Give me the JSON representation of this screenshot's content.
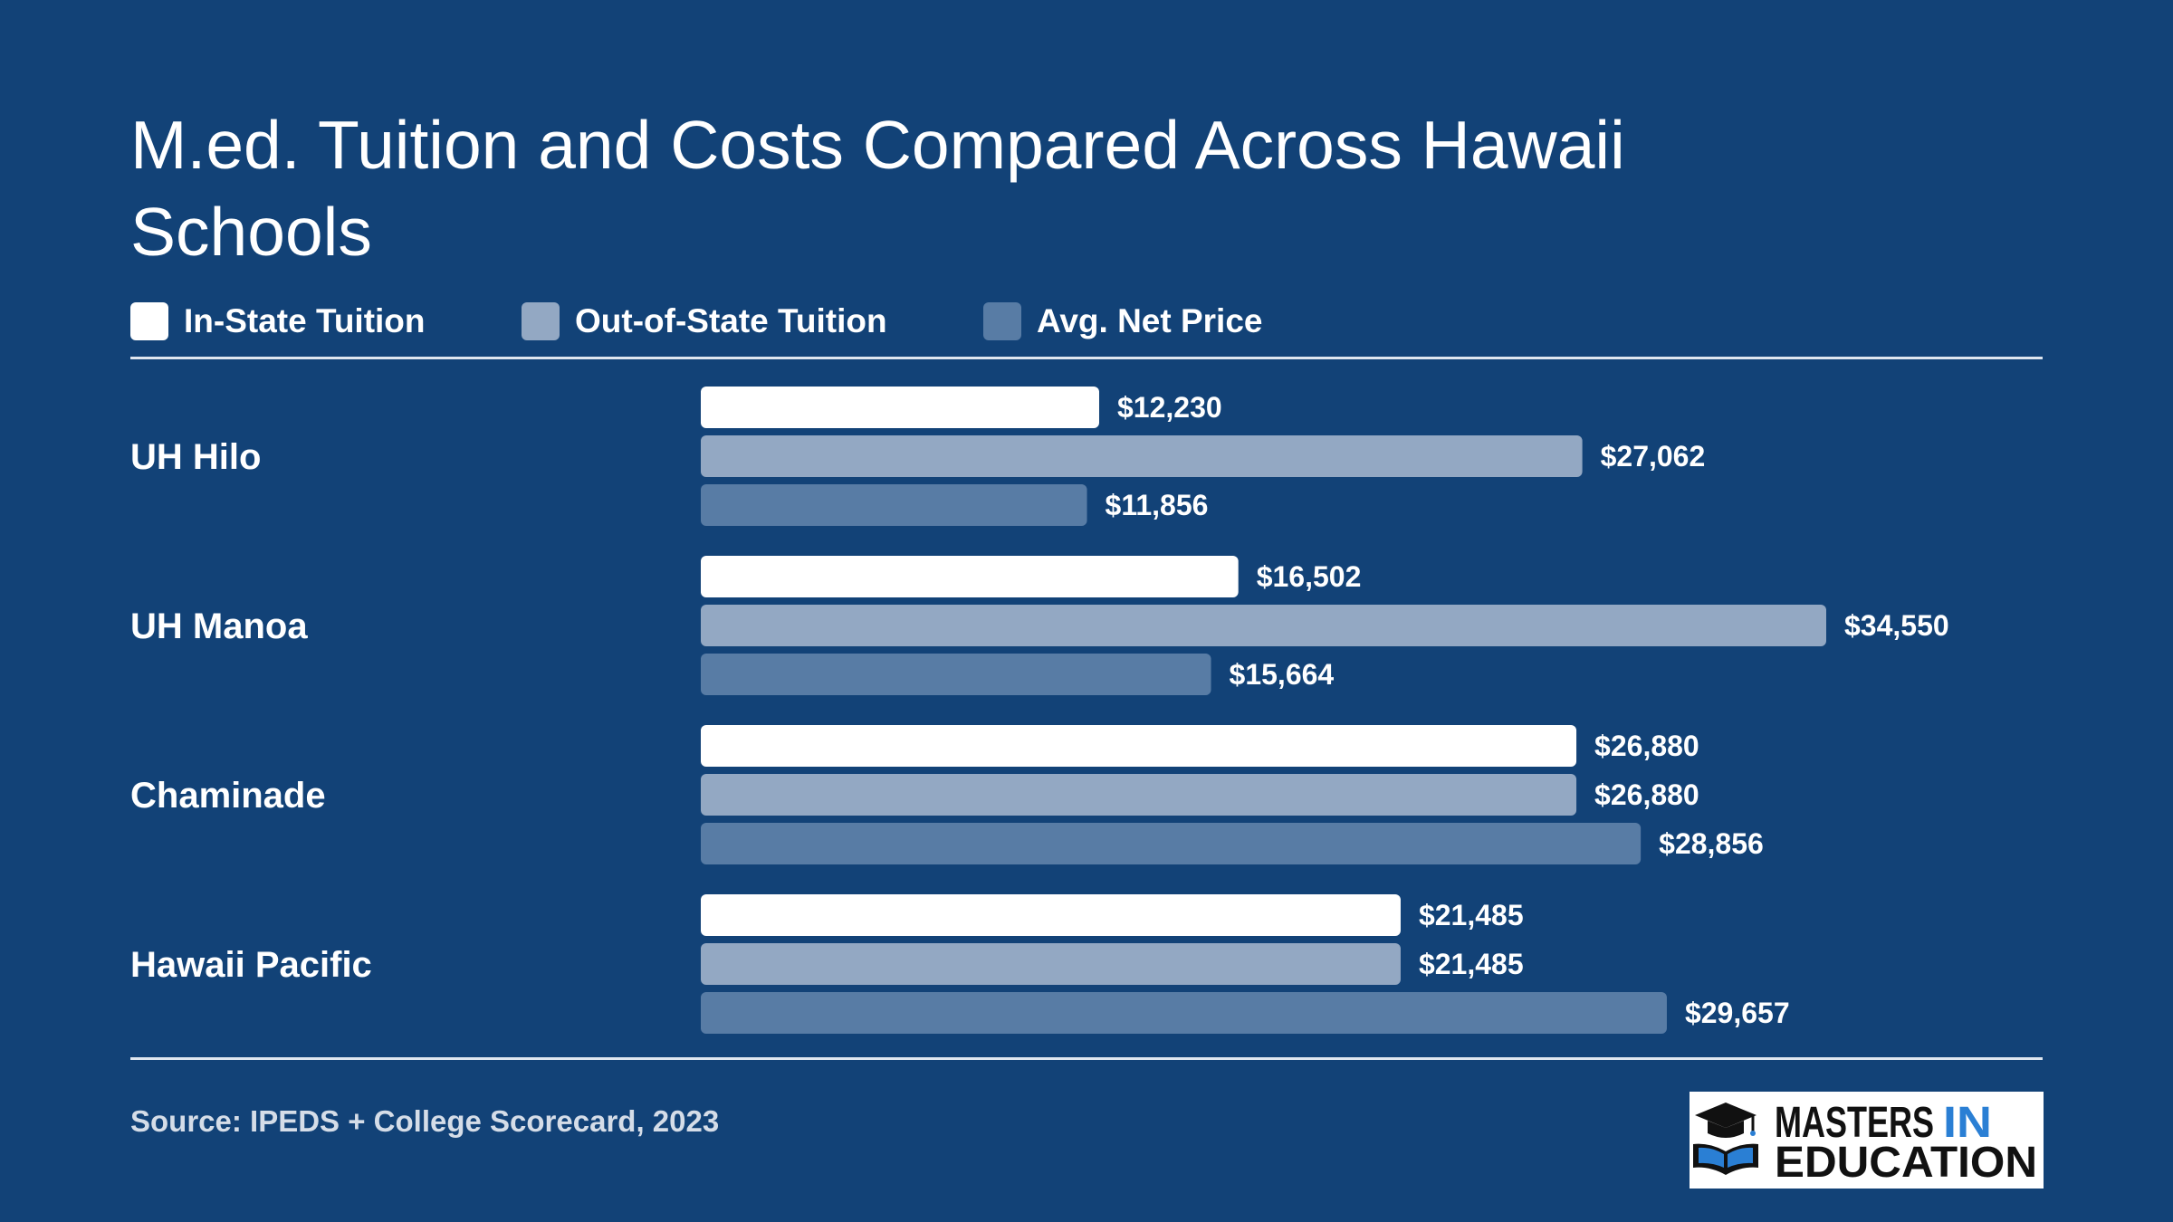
{
  "chart_data": {
    "type": "bar",
    "orientation": "horizontal",
    "title": "M.ed. Tuition and Costs Compared Across Hawaii Schools",
    "categories": [
      "UH Hilo",
      "UH Manoa",
      "Chaminade",
      "Hawaii Pacific"
    ],
    "series": [
      {
        "name": "In-State Tuition",
        "color": "#ffffff",
        "values": [
          12230,
          16502,
          26880,
          21485
        ],
        "labels": [
          "$12,230",
          "$16,502",
          "$26,880",
          "$21,485"
        ]
      },
      {
        "name": "Out-of-State Tuition",
        "color": "#93a8c3",
        "values": [
          27062,
          34550,
          26880,
          21485
        ],
        "labels": [
          "$27,062",
          "$34,550",
          "$26,880",
          "$21,485"
        ]
      },
      {
        "name": "Avg. Net Price",
        "color": "#587ca5",
        "values": [
          11856,
          15664,
          28856,
          29657
        ],
        "labels": [
          "$11,856",
          "$15,664",
          "$28,856",
          "$29,657"
        ]
      }
    ],
    "xlim": [
      0,
      34550
    ],
    "grid": false,
    "legend": "top-left"
  },
  "source": "Source: IPEDS + College Scorecard, 2023",
  "logo": {
    "line1_a": "MASTERS",
    "line1_b": "IN",
    "line2": "EDUCATION",
    "icon": "graduation-cap-book-icon"
  },
  "colors": {
    "background": "#124277",
    "accent": "#2a7fd4"
  }
}
